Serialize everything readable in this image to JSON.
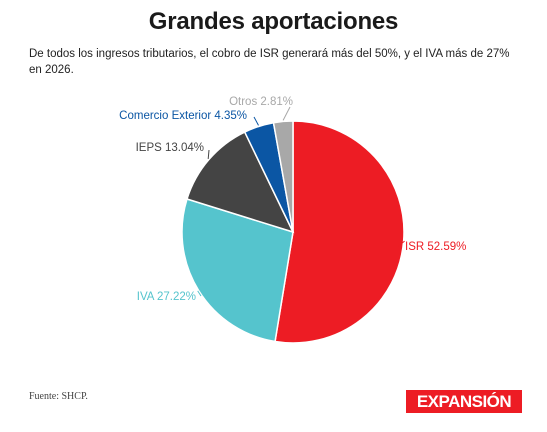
{
  "title": "Grandes aportaciones",
  "subtitle": "De todos los ingresos tributarios, el cobro de ISR generará más del 50%, y el IVA más de 27% en 2026.",
  "source": "Fuente: SHCP.",
  "logo": "EXPANSIÓN",
  "chart_data": {
    "type": "pie",
    "slices": [
      {
        "label": "ISR 52.59%",
        "category": "ISR",
        "value": 52.59,
        "color": "#ed1c24"
      },
      {
        "label": "IVA 27.22%",
        "category": "IVA",
        "value": 27.22,
        "color": "#55c4cd"
      },
      {
        "label": "IEPS 13.04%",
        "category": "IEPS",
        "value": 13.04,
        "color": "#444444"
      },
      {
        "label": "Comercio Exterior 4.35%",
        "category": "Comercio Exterior",
        "value": 4.35,
        "color": "#0b56a4"
      },
      {
        "label": "Otros 2.81%",
        "category": "Otros",
        "value": 2.81,
        "color": "#a8a8a8"
      }
    ],
    "label_colors": [
      "#ed1c24",
      "#55c4cd",
      "#444444",
      "#0b56a4",
      "#a8a8a8"
    ]
  }
}
